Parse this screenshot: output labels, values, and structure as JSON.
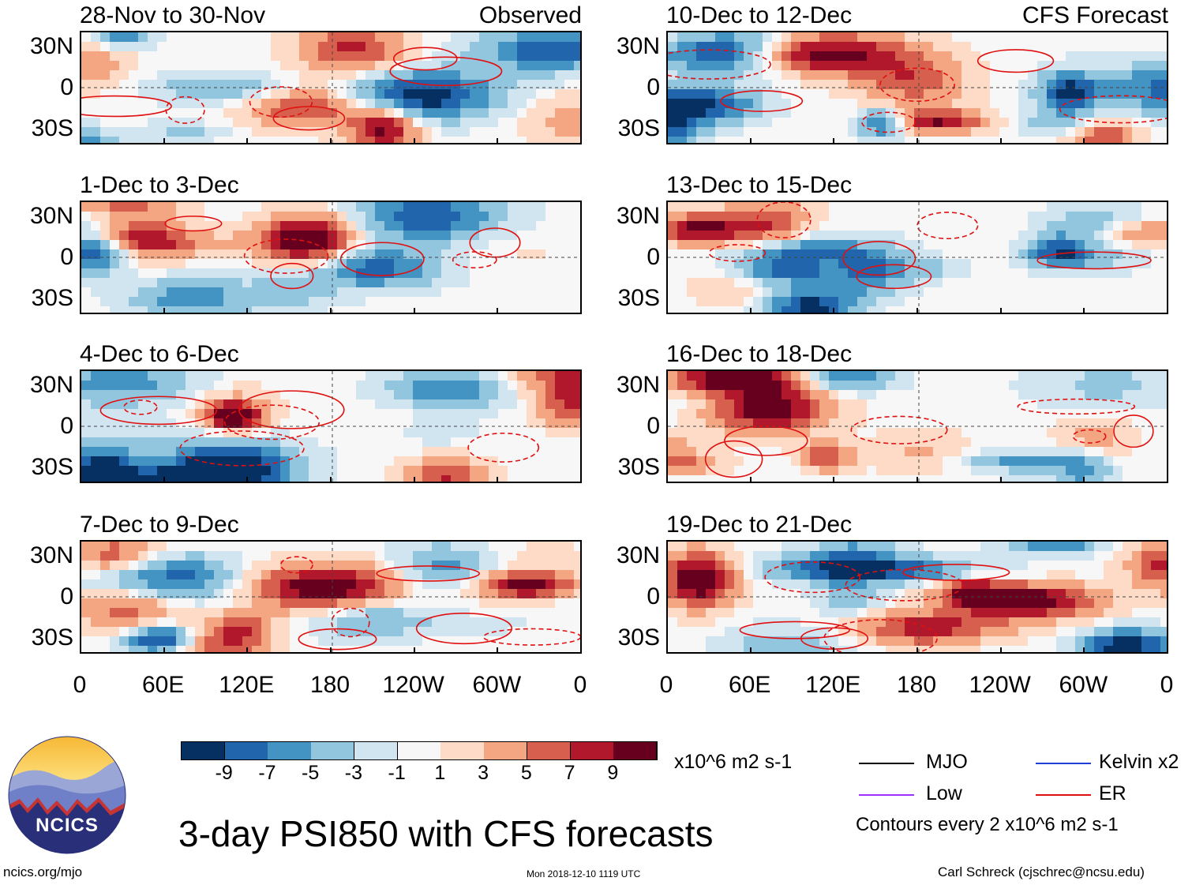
{
  "chart_data": {
    "type": "heatmap",
    "title": "3-day PSI850 with CFS forecasts",
    "variable": "PSI850 anomaly",
    "units": "x10^6 m2 s-1",
    "columns": [
      {
        "label_right": "Observed",
        "panels": [
          "28-Nov to 30-Nov",
          "1-Dec to 3-Dec",
          "4-Dec to 6-Dec",
          "7-Dec to 9-Dec"
        ]
      },
      {
        "label_right": "CFS Forecast",
        "panels": [
          "10-Dec to 12-Dec",
          "13-Dec to 15-Dec",
          "16-Dec to 18-Dec",
          "19-Dec to 21-Dec"
        ]
      }
    ],
    "y_ticks": [
      "30N",
      "0",
      "30S"
    ],
    "x_ticks": [
      "0",
      "60E",
      "120E",
      "180",
      "120W",
      "60W",
      "0"
    ],
    "colorbar": {
      "ticks": [
        "-9",
        "-7",
        "-5",
        "-3",
        "-1",
        "1",
        "3",
        "5",
        "7",
        "9"
      ],
      "colors": [
        "#053061",
        "#2166ac",
        "#4393c3",
        "#92c5de",
        "#d1e5f0",
        "#f7f7f7",
        "#fddbc7",
        "#f4a582",
        "#d6604d",
        "#b2182b",
        "#67001f"
      ]
    },
    "legend": [
      {
        "label": "MJO",
        "color": "#000000"
      },
      {
        "label": "Kelvin x2",
        "color": "#1f3fd6"
      },
      {
        "label": "Low",
        "color": "#9b30ff"
      },
      {
        "label": "ER",
        "color": "#e01010"
      }
    ],
    "contour_note": "Contours every 2 x10^6 m2 s-1"
  },
  "footer": {
    "logo_text": "NCICS",
    "site": "ncics.org/mjo",
    "timestamp": "Mon 2018-12-10 1119 UTC",
    "author": "Carl Schreck (cjschrec@ncsu.edu)"
  }
}
